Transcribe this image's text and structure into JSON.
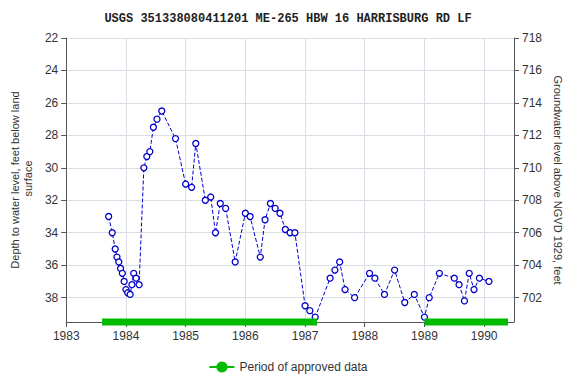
{
  "chart_data": {
    "type": "line",
    "title": "USGS 351338080411201 ME-265 HBW 16 HARRISBURG RD LF",
    "ylabel": "Depth to water level, feet below land\n surface",
    "y2label": "Groundwater level above NGVD 1929, feet",
    "xlim": [
      1983.0,
      1990.5
    ],
    "xticks": [
      1983,
      1984,
      1985,
      1986,
      1987,
      1988,
      1989,
      1990
    ],
    "ylim": [
      39.5,
      22
    ],
    "yticks": [
      22,
      24,
      26,
      28,
      30,
      32,
      34,
      36,
      38
    ],
    "y2lim": [
      700.5,
      718
    ],
    "y2ticks": [
      702,
      704,
      706,
      708,
      710,
      712,
      714,
      716,
      718
    ],
    "grid": true,
    "legend": "bottom",
    "series": [
      {
        "type": "line",
        "color": "#0000CC",
        "marker": "circle",
        "line_style": "dashed",
        "x": [
          1983.71,
          1983.77,
          1983.82,
          1983.85,
          1983.88,
          1983.91,
          1983.94,
          1983.97,
          1984.0,
          1984.03,
          1984.07,
          1984.1,
          1984.13,
          1984.17,
          1984.22,
          1984.3,
          1984.35,
          1984.4,
          1984.46,
          1984.52,
          1984.6,
          1984.83,
          1985.0,
          1985.1,
          1985.17,
          1985.33,
          1985.42,
          1985.5,
          1985.58,
          1985.67,
          1985.83,
          1986.0,
          1986.08,
          1986.25,
          1986.33,
          1986.42,
          1986.5,
          1986.58,
          1986.67,
          1986.75,
          1986.83,
          1987.0,
          1987.08,
          1987.17,
          1987.42,
          1987.5,
          1987.58,
          1987.67,
          1987.83,
          1988.08,
          1988.17,
          1988.33,
          1988.5,
          1988.67,
          1988.83,
          1989.0,
          1989.08,
          1989.25,
          1989.5,
          1989.58,
          1989.67,
          1989.75,
          1989.83,
          1989.92,
          1990.08
        ],
        "values": [
          33.0,
          34.0,
          35.0,
          35.5,
          35.8,
          36.2,
          36.5,
          37.0,
          37.5,
          37.7,
          37.8,
          37.2,
          36.5,
          36.8,
          37.2,
          30.0,
          29.3,
          29.0,
          27.5,
          27.0,
          26.5,
          28.2,
          31.0,
          31.2,
          28.5,
          32.0,
          31.8,
          34.0,
          32.2,
          32.5,
          35.8,
          32.8,
          33.0,
          35.5,
          33.2,
          32.2,
          32.5,
          32.8,
          33.8,
          34.0,
          34.0,
          38.5,
          38.8,
          39.2,
          36.8,
          36.3,
          35.8,
          37.5,
          38.0,
          36.5,
          36.8,
          37.8,
          36.3,
          38.3,
          37.8,
          39.2,
          38.0,
          36.5,
          36.8,
          37.2,
          38.2,
          36.5,
          37.5,
          36.8,
          37.0
        ]
      },
      {
        "name": "Period of approved data",
        "type": "segments",
        "color": "#00BB00",
        "segments": [
          [
            1983.6,
            1987.2
          ],
          [
            1989.0,
            1990.4
          ]
        ],
        "y": 39.5
      }
    ]
  }
}
